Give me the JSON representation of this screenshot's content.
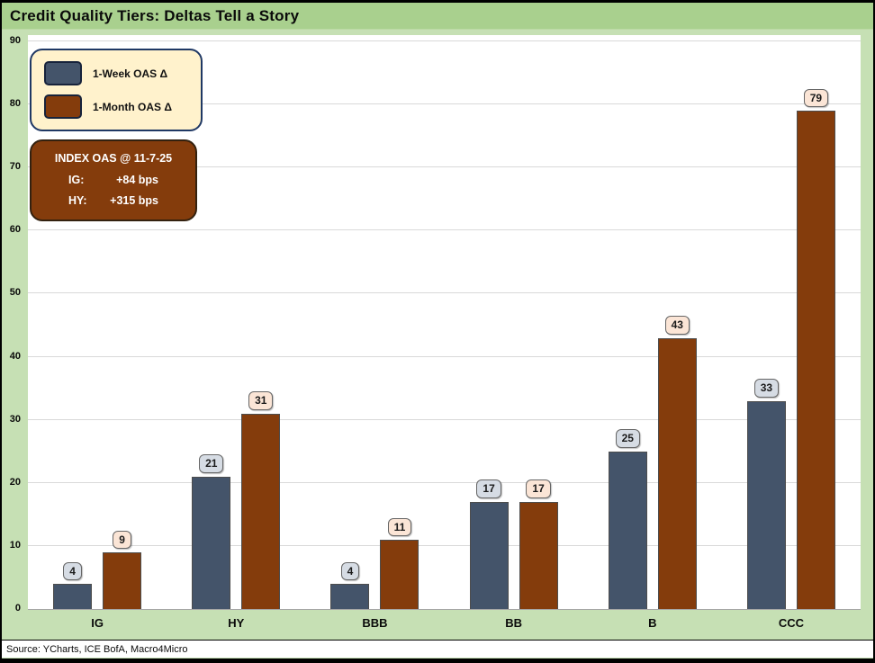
{
  "window": {
    "title": "Credit Quality Tiers: Deltas Tell a Story"
  },
  "source_note": "Source: YCharts, ICE BofA, Macro4Micro",
  "legend": {
    "week_label": "1-Week OAS Δ",
    "month_label": "1-Month OAS Δ"
  },
  "info_box": {
    "title": "INDEX OAS @ 11-7-25",
    "rows": [
      {
        "label": "IG:",
        "value": "+84 bps"
      },
      {
        "label": "HY:",
        "value": "+315 bps"
      }
    ]
  },
  "colors": {
    "title_bar": "#A9D08E",
    "background": "#C6E0B4",
    "plot_background": "#FFFFFF",
    "gridline": "#D9D9D9",
    "week_bar": "#44546A",
    "month_bar": "#843C0C",
    "week_label_bg": "#D6DCE4",
    "month_label_bg": "#FBE5D6",
    "legend_bg": "#FFF2CC",
    "legend_border": "#1F3864",
    "info_bg": "#843C0C"
  },
  "chart_data": {
    "type": "bar",
    "title": "Credit Quality Tiers: Deltas Tell a Story",
    "categories": [
      "IG",
      "HY",
      "BBB",
      "BB",
      "B",
      "CCC"
    ],
    "series": [
      {
        "name": "1-Week OAS Δ",
        "color": "#44546A",
        "label_bg": "#D6DCE4",
        "values": [
          4,
          21,
          4,
          17,
          25,
          33
        ]
      },
      {
        "name": "1-Month OAS Δ",
        "color": "#843C0C",
        "label_bg": "#FBE5D6",
        "values": [
          9,
          31,
          11,
          17,
          43,
          79
        ]
      }
    ],
    "xlabel": "",
    "ylabel": "",
    "ylim": [
      0,
      90
    ],
    "ytick_step": 10,
    "grid": true,
    "legend_position": "top-left",
    "annotations": [
      "INDEX OAS @ 11-7-25",
      "IG: +84 bps",
      "HY: +315 bps"
    ]
  }
}
